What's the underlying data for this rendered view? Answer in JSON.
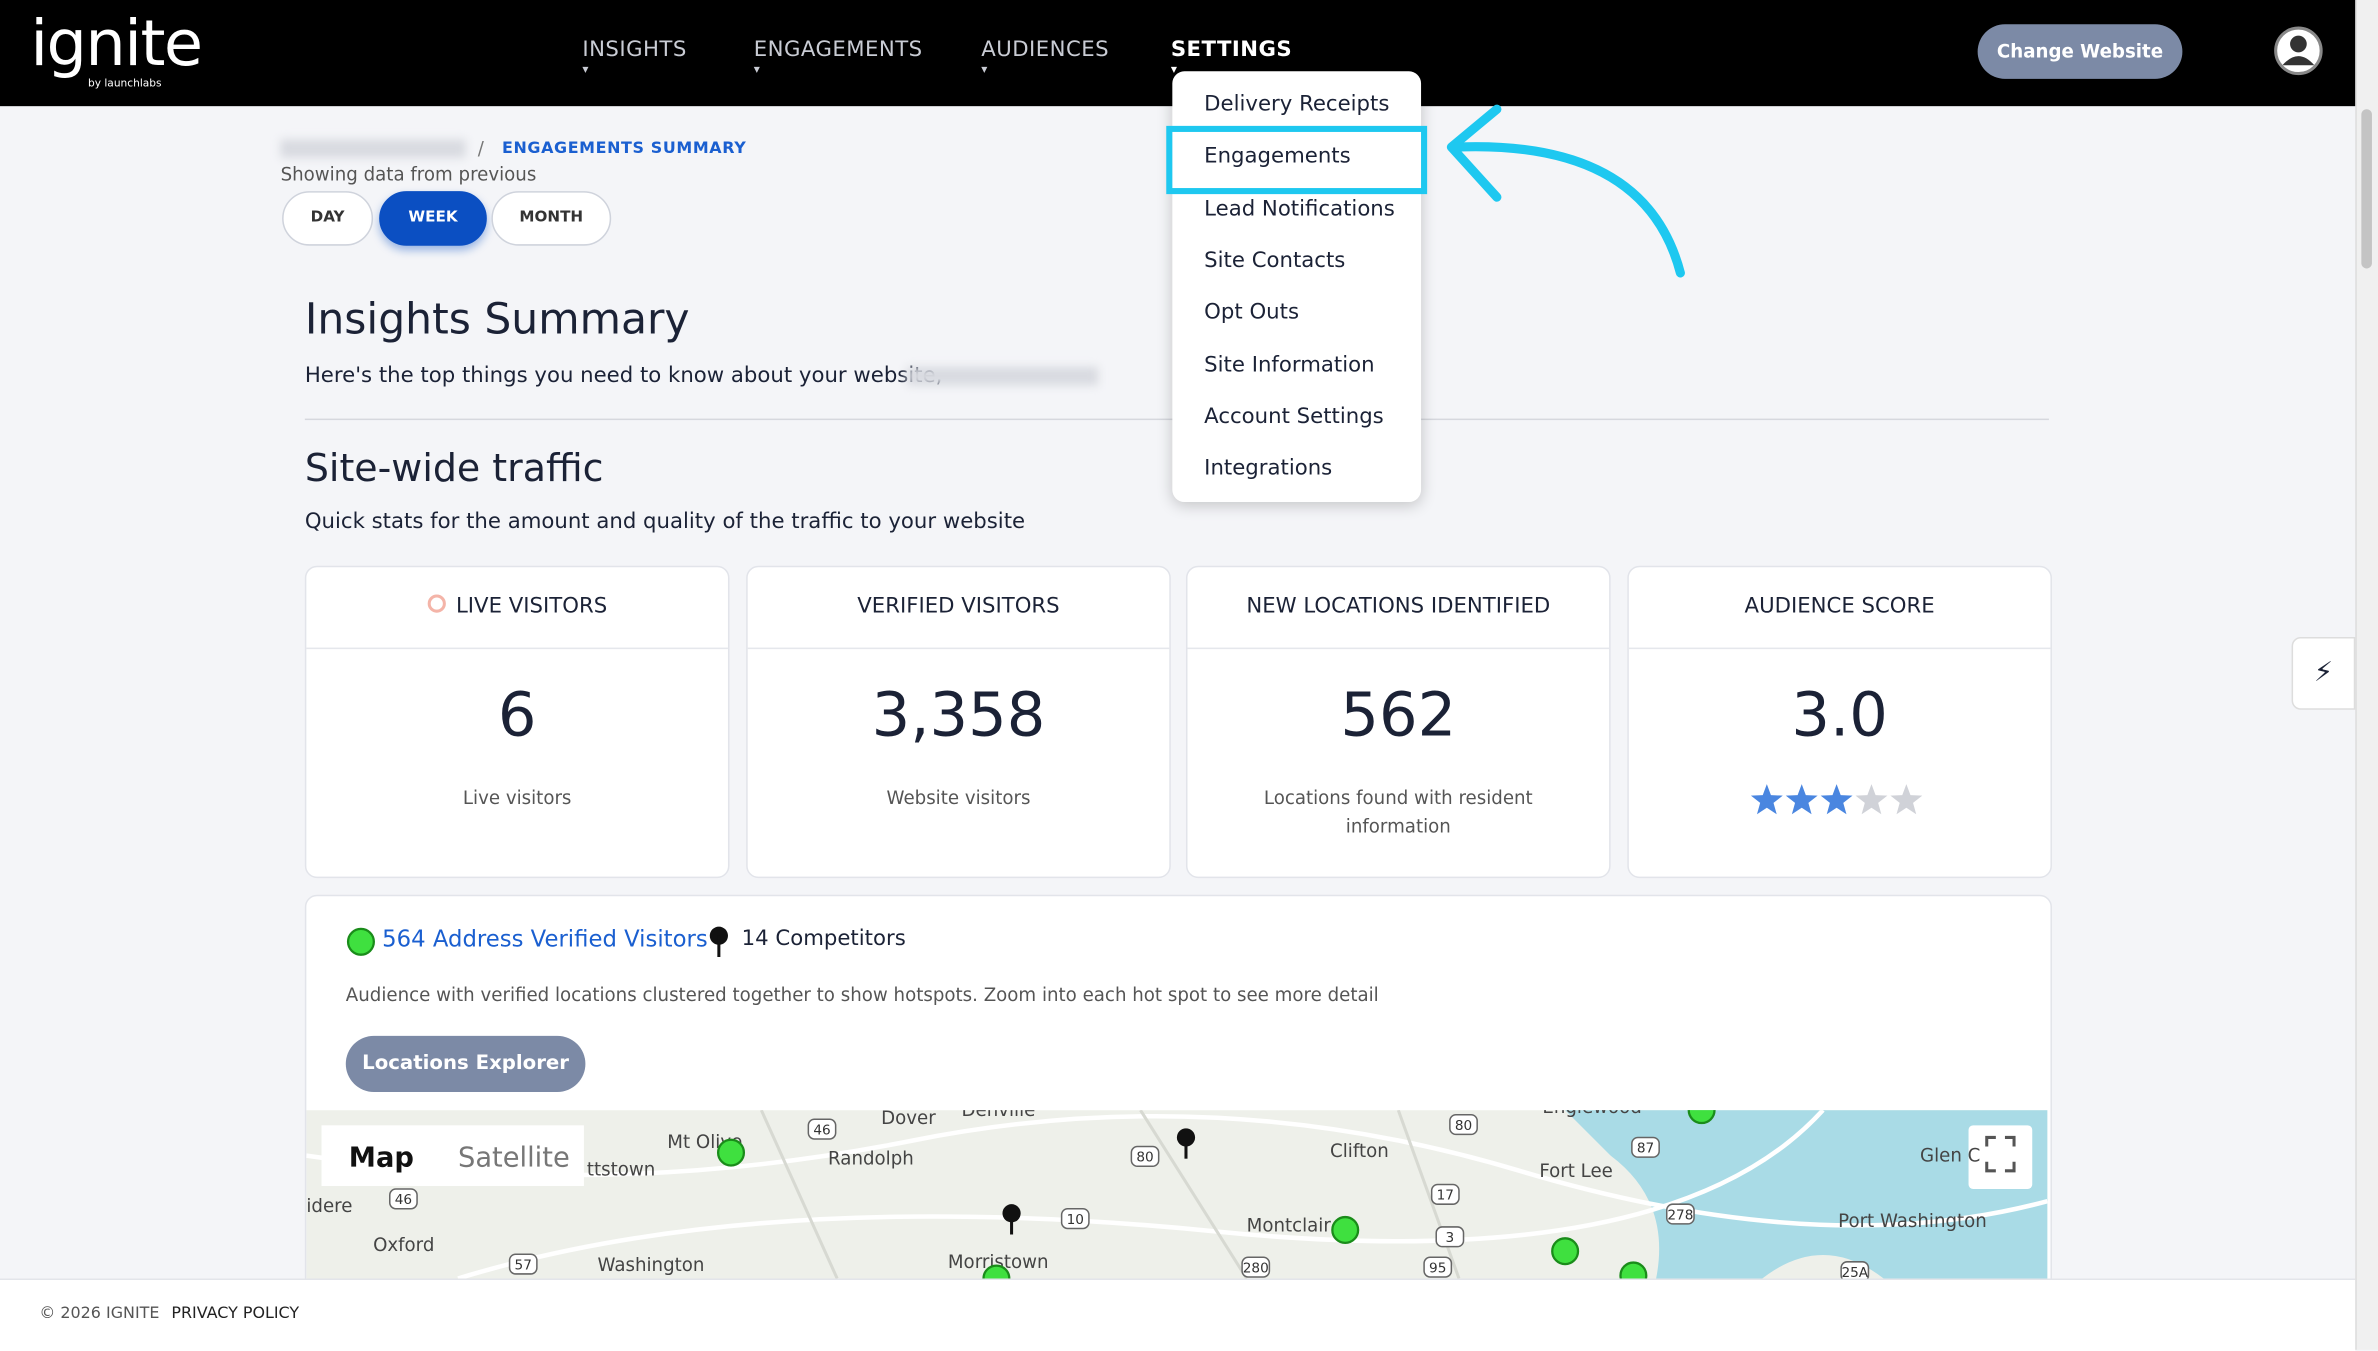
{
  "header": {
    "logo": "ignite",
    "logo_sub": "by launchlabs",
    "nav": [
      "INSIGHTS",
      "ENGAGEMENTS",
      "AUDIENCES",
      "SETTINGS"
    ],
    "change_website": "Change Website"
  },
  "settings_menu": {
    "items": [
      "Delivery Receipts",
      "Engagements",
      "Lead Notifications",
      "Site Contacts",
      "Opt Outs",
      "Site Information",
      "Account Settings",
      "Integrations"
    ]
  },
  "breadcrumb": {
    "current": "ENGAGEMENTS SUMMARY"
  },
  "period": {
    "label": "Showing data from previous",
    "options": [
      "DAY",
      "WEEK",
      "MONTH"
    ],
    "selected": 1
  },
  "insights": {
    "title": "Insights Summary",
    "subtitle": "Here's the top things you need to know about your website,"
  },
  "traffic": {
    "title": "Site-wide traffic",
    "subtitle": "Quick stats for the amount and quality of the traffic to your website",
    "cards": [
      {
        "title": "LIVE VISITORS",
        "value": "6",
        "caption": "Live visitors"
      },
      {
        "title": "VERIFIED VISITORS",
        "value": "3,358",
        "caption": "Website visitors"
      },
      {
        "title": "NEW LOCATIONS IDENTIFIED",
        "value": "562",
        "caption": "Locations found with resident information"
      },
      {
        "title": "AUDIENCE SCORE",
        "value": "3.0",
        "stars": 3,
        "stars_total": 5
      }
    ]
  },
  "map_section": {
    "verified": "564 Address Verified Visitors",
    "competitors": "14 Competitors",
    "description": "Audience with verified locations clustered together to show hotspots. Zoom into each hot spot to see more detail",
    "button": "Locations Explorer",
    "map_types": [
      "Map",
      "Satellite"
    ],
    "places": [
      "Dover",
      "Denville",
      "Randolph",
      "Mt Olive",
      "ttstown",
      "idere",
      "Oxford",
      "Washington",
      "Morristown",
      "Clifton",
      "Montclair",
      "Englewood",
      "Fort Lee",
      "Glen C",
      "Port Washington"
    ],
    "shields": [
      "46",
      "46",
      "80",
      "10",
      "17",
      "3",
      "80",
      "87",
      "278",
      "280",
      "95",
      "57",
      "25A"
    ]
  },
  "footer": {
    "copyright": "© 2026 IGNITE",
    "privacy": "PRIVACY POLICY"
  }
}
